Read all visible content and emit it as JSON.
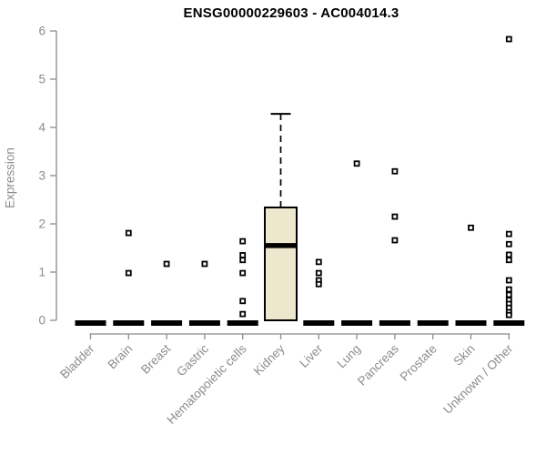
{
  "chart_data": {
    "type": "boxplot",
    "title": "ENSG00000229603 - AC004014.3",
    "ylabel": "Expression",
    "xlabel": "",
    "ylim": [
      0,
      6
    ],
    "yticks": [
      0,
      1,
      2,
      3,
      4,
      5,
      6
    ],
    "grid": false,
    "legend": "none",
    "colors": {
      "box_fill": "#ECE7CD",
      "box_border": "#000000",
      "median_line": "#000000",
      "outlier": "#000000",
      "axis": "#8c8c8c",
      "title": "#000000"
    },
    "categories": [
      "Bladder",
      "Brain",
      "Breast",
      "Gastric",
      "Hematopoietic cells",
      "Kidney",
      "Liver",
      "Lung",
      "Pancreas",
      "Prostate",
      "Skin",
      "Unknown / Other"
    ],
    "series": [
      {
        "category": "Bladder",
        "box": {
          "median": 0
        },
        "points": []
      },
      {
        "category": "Brain",
        "box": {
          "median": 0
        },
        "points": [
          1.81,
          0.98
        ]
      },
      {
        "category": "Breast",
        "box": {
          "median": 0
        },
        "points": [
          1.17
        ]
      },
      {
        "category": "Gastric",
        "box": {
          "median": 0
        },
        "points": [
          1.17
        ]
      },
      {
        "category": "Hematopoietic cells",
        "box": {
          "median": 0
        },
        "points": [
          1.64,
          1.35,
          1.25,
          0.98,
          0.4,
          0.13
        ]
      },
      {
        "category": "Kidney",
        "box": {
          "q1": 0,
          "median": 1.55,
          "q3": 2.34,
          "whisker_low": 0,
          "whisker_high": 4.28
        },
        "points": []
      },
      {
        "category": "Liver",
        "box": {
          "median": 0
        },
        "points": [
          1.21,
          0.98,
          0.83,
          0.75
        ]
      },
      {
        "category": "Lung",
        "box": {
          "median": 0
        },
        "points": [
          3.25
        ]
      },
      {
        "category": "Pancreas",
        "box": {
          "median": 0
        },
        "points": [
          3.09,
          2.15,
          1.66
        ]
      },
      {
        "category": "Prostate",
        "box": {
          "median": 0
        },
        "points": []
      },
      {
        "category": "Skin",
        "box": {
          "median": 0
        },
        "points": [
          1.92
        ]
      },
      {
        "category": "Unknown / Other",
        "box": {
          "median": 0
        },
        "points": [
          5.83,
          1.79,
          1.58,
          1.36,
          1.25,
          0.83,
          0.64,
          0.53,
          0.42,
          0.34,
          0.26,
          0.17,
          0.11
        ]
      }
    ]
  }
}
